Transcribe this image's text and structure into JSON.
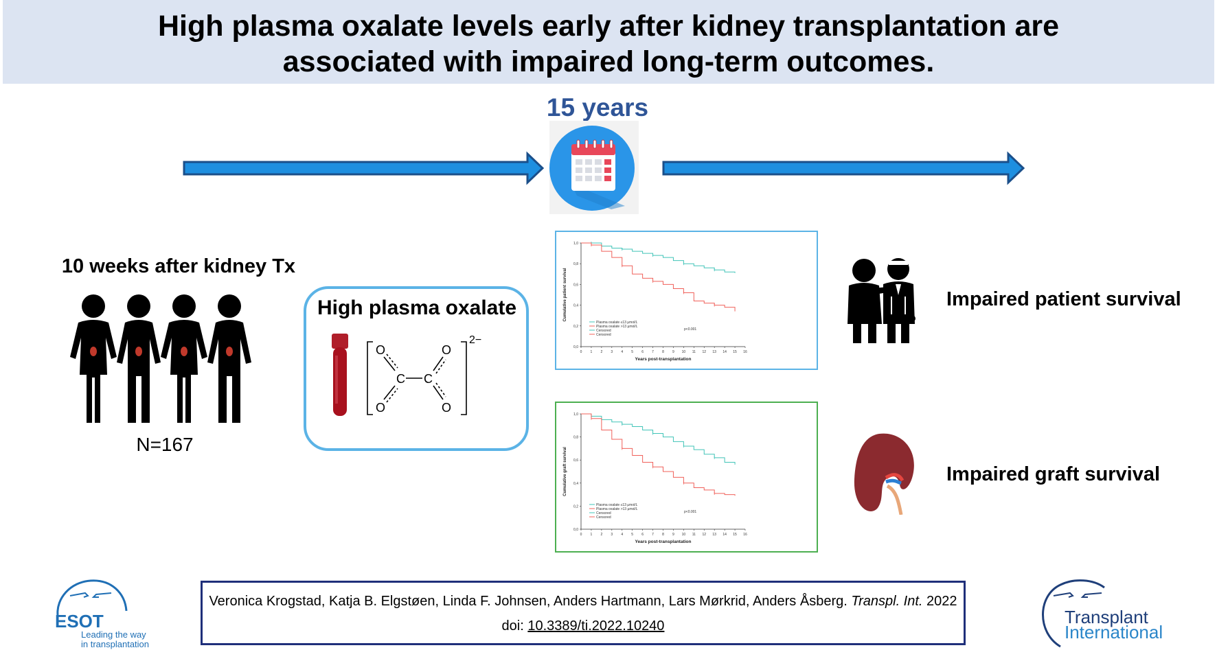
{
  "title": {
    "line1": "High plasma oxalate levels early after kidney transplantation are",
    "line2": "associated with impaired long-term outcomes."
  },
  "timeline": {
    "years_label": "15 years"
  },
  "cohort": {
    "label": "10 weeks after kidney Tx",
    "n_label": "N=167"
  },
  "exposure": {
    "label": "High plasma oxalate",
    "charge": "2−",
    "atom_o": "O",
    "atom_c": "C"
  },
  "chart_data": [
    {
      "type": "line",
      "ylabel": "Cumulative patient survival",
      "xlabel": "Years post-transplantation",
      "xlim": [
        0,
        16
      ],
      "ylim": [
        0.0,
        1.0
      ],
      "x_ticks": [
        "0",
        "1",
        "2",
        "3",
        "4",
        "5",
        "6",
        "7",
        "8",
        "9",
        "10",
        "11",
        "12",
        "13",
        "14",
        "15",
        "16"
      ],
      "y_ticks": [
        "0,0",
        "0,2",
        "0,4",
        "0,6",
        "0,8",
        "1,0"
      ],
      "legend": [
        "Plasma oxalate ≤13 µmol/L",
        "Plasma oxalate >13 µmol/L",
        "Censored",
        "Censored"
      ],
      "pvalue": "p<0.001",
      "series": [
        {
          "name": "Plasma oxalate ≤13 µmol/L",
          "color": "#40c4b8",
          "x": [
            0,
            1,
            2,
            3,
            4,
            5,
            6,
            7,
            8,
            9,
            10,
            11,
            12,
            13,
            14,
            15
          ],
          "y": [
            1.0,
            1.0,
            0.97,
            0.95,
            0.94,
            0.92,
            0.9,
            0.88,
            0.86,
            0.83,
            0.8,
            0.78,
            0.76,
            0.74,
            0.72,
            0.71
          ]
        },
        {
          "name": "Plasma oxalate >13 µmol/L",
          "color": "#f0605a",
          "x": [
            0,
            1,
            2,
            3,
            4,
            5,
            6,
            7,
            8,
            9,
            10,
            11,
            12,
            13,
            14,
            15
          ],
          "y": [
            1.0,
            0.98,
            0.92,
            0.86,
            0.78,
            0.7,
            0.66,
            0.63,
            0.6,
            0.56,
            0.52,
            0.44,
            0.42,
            0.4,
            0.38,
            0.34
          ]
        }
      ]
    },
    {
      "type": "line",
      "ylabel": "Cumulative graft survival",
      "xlabel": "Years post-transplantation",
      "xlim": [
        0,
        16
      ],
      "ylim": [
        0.0,
        1.0
      ],
      "x_ticks": [
        "0",
        "1",
        "2",
        "3",
        "4",
        "5",
        "6",
        "7",
        "8",
        "9",
        "10",
        "11",
        "12",
        "13",
        "14",
        "15",
        "16"
      ],
      "y_ticks": [
        "0,0",
        "0,2",
        "0,4",
        "0,6",
        "0,8",
        "1,0"
      ],
      "legend": [
        "Plasma oxalate ≤13 µmol/L",
        "Plasma oxalate >13 µmol/L",
        "Censored",
        "Censored"
      ],
      "pvalue": "p<0.001",
      "series": [
        {
          "name": "Plasma oxalate ≤13 µmol/L",
          "color": "#40c4b8",
          "x": [
            0,
            1,
            2,
            3,
            4,
            5,
            6,
            7,
            8,
            9,
            10,
            11,
            12,
            13,
            14,
            15
          ],
          "y": [
            1.0,
            0.98,
            0.95,
            0.93,
            0.91,
            0.89,
            0.86,
            0.83,
            0.8,
            0.76,
            0.72,
            0.69,
            0.65,
            0.62,
            0.58,
            0.56
          ]
        },
        {
          "name": "Plasma oxalate >13 µmol/L",
          "color": "#f0605a",
          "x": [
            0,
            1,
            2,
            3,
            4,
            5,
            6,
            7,
            8,
            9,
            10,
            11,
            12,
            13,
            14,
            15
          ],
          "y": [
            1.0,
            0.96,
            0.86,
            0.78,
            0.7,
            0.64,
            0.58,
            0.54,
            0.5,
            0.45,
            0.4,
            0.36,
            0.34,
            0.31,
            0.3,
            0.29
          ]
        }
      ]
    }
  ],
  "outcomes": {
    "patient": "Impaired patient survival",
    "graft": "Impaired graft survival"
  },
  "citation": {
    "authors": "Veronica Krogstad, Katja B. Elgstøen, Linda F. Johnsen, Anders Hartmann, Lars Mørkrid, Anders Åsberg.",
    "journal": "Transpl. Int.",
    "year": "2022",
    "doi_prefix": "doi:",
    "doi": "10.3389/ti.2022.10240"
  },
  "logos": {
    "esot_name": "ESOT",
    "esot_tagline_1": "Leading the way",
    "esot_tagline_2": "in transplantation",
    "ti_line1": "Transplant",
    "ti_line2": "International"
  },
  "colors": {
    "banner": "#dce4f2",
    "arrow": "#1e8fe0",
    "years": "#2f5597",
    "box_border": "#5bb3e6",
    "km_group1": "#40c4b8",
    "km_group2": "#f0605a",
    "citation_border": "#1f2f7a"
  }
}
